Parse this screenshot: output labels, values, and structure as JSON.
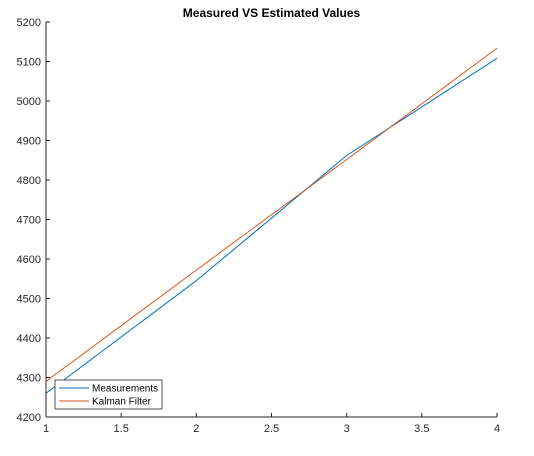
{
  "chart_data": {
    "type": "line",
    "title": "Measured VS Estimated Values",
    "xlabel": "",
    "ylabel": "",
    "xlim": [
      1,
      4
    ],
    "ylim": [
      4200,
      5200
    ],
    "xticks": [
      1,
      1.5,
      2,
      2.5,
      3,
      3.5,
      4
    ],
    "yticks": [
      4200,
      4300,
      4400,
      4500,
      4600,
      4700,
      4800,
      4900,
      5000,
      5100,
      5200
    ],
    "xtick_labels": [
      "1",
      "1.5",
      "2",
      "2.5",
      "3",
      "3.5",
      "4"
    ],
    "ytick_labels": [
      "4200",
      "4300",
      "4400",
      "4500",
      "4600",
      "4700",
      "4800",
      "4900",
      "5000",
      "5100",
      "5200"
    ],
    "grid": false,
    "legend_position": "bottom-left",
    "series": [
      {
        "name": "Measurements",
        "color": "#0072BD",
        "x": [
          1,
          2,
          3,
          4
        ],
        "y": [
          4260,
          4545,
          4862,
          5108
        ]
      },
      {
        "name": "Kalman Filter",
        "color": "#D95319",
        "x": [
          1,
          2,
          3,
          4
        ],
        "y": [
          4290,
          4572,
          4852,
          5134
        ]
      }
    ]
  }
}
